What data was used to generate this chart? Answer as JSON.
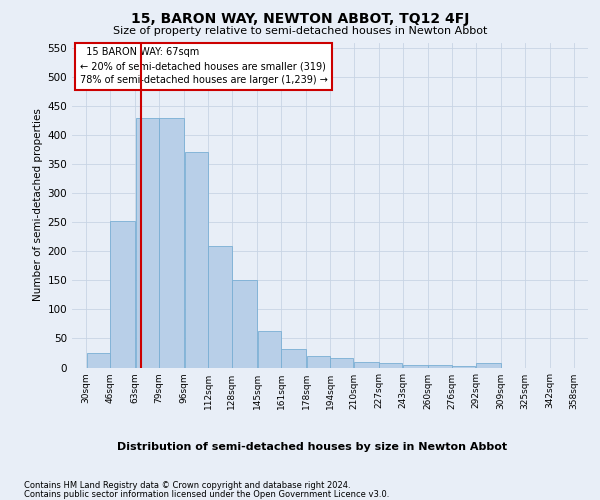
{
  "title": "15, BARON WAY, NEWTON ABBOT, TQ12 4FJ",
  "subtitle": "Size of property relative to semi-detached houses in Newton Abbot",
  "xlabel": "Distribution of semi-detached houses by size in Newton Abbot",
  "ylabel": "Number of semi-detached properties",
  "footnote1": "Contains HM Land Registry data © Crown copyright and database right 2024.",
  "footnote2": "Contains public sector information licensed under the Open Government Licence v3.0.",
  "annotation_title": "15 BARON WAY: 67sqm",
  "annotation_line1": "← 20% of semi-detached houses are smaller (319)",
  "annotation_line2": "78% of semi-detached houses are larger (1,239) →",
  "subject_value": 67,
  "bar_edges": [
    30,
    46,
    63,
    79,
    96,
    112,
    128,
    145,
    161,
    178,
    194,
    210,
    227,
    243,
    260,
    276,
    292,
    309,
    325,
    342,
    358
  ],
  "bar_heights": [
    25,
    253,
    430,
    430,
    372,
    209,
    151,
    63,
    32,
    20,
    17,
    10,
    7,
    5,
    5,
    2,
    7,
    0,
    0,
    0,
    0
  ],
  "bar_color": "#b8cfe8",
  "bar_edge_color": "#7aafd4",
  "vline_color": "#cc0000",
  "annotation_box_color": "#cc0000",
  "bg_color": "#e8eef7",
  "grid_color": "#c8d4e4",
  "ylim": [
    0,
    560
  ],
  "yticks": [
    0,
    50,
    100,
    150,
    200,
    250,
    300,
    350,
    400,
    450,
    500,
    550
  ]
}
